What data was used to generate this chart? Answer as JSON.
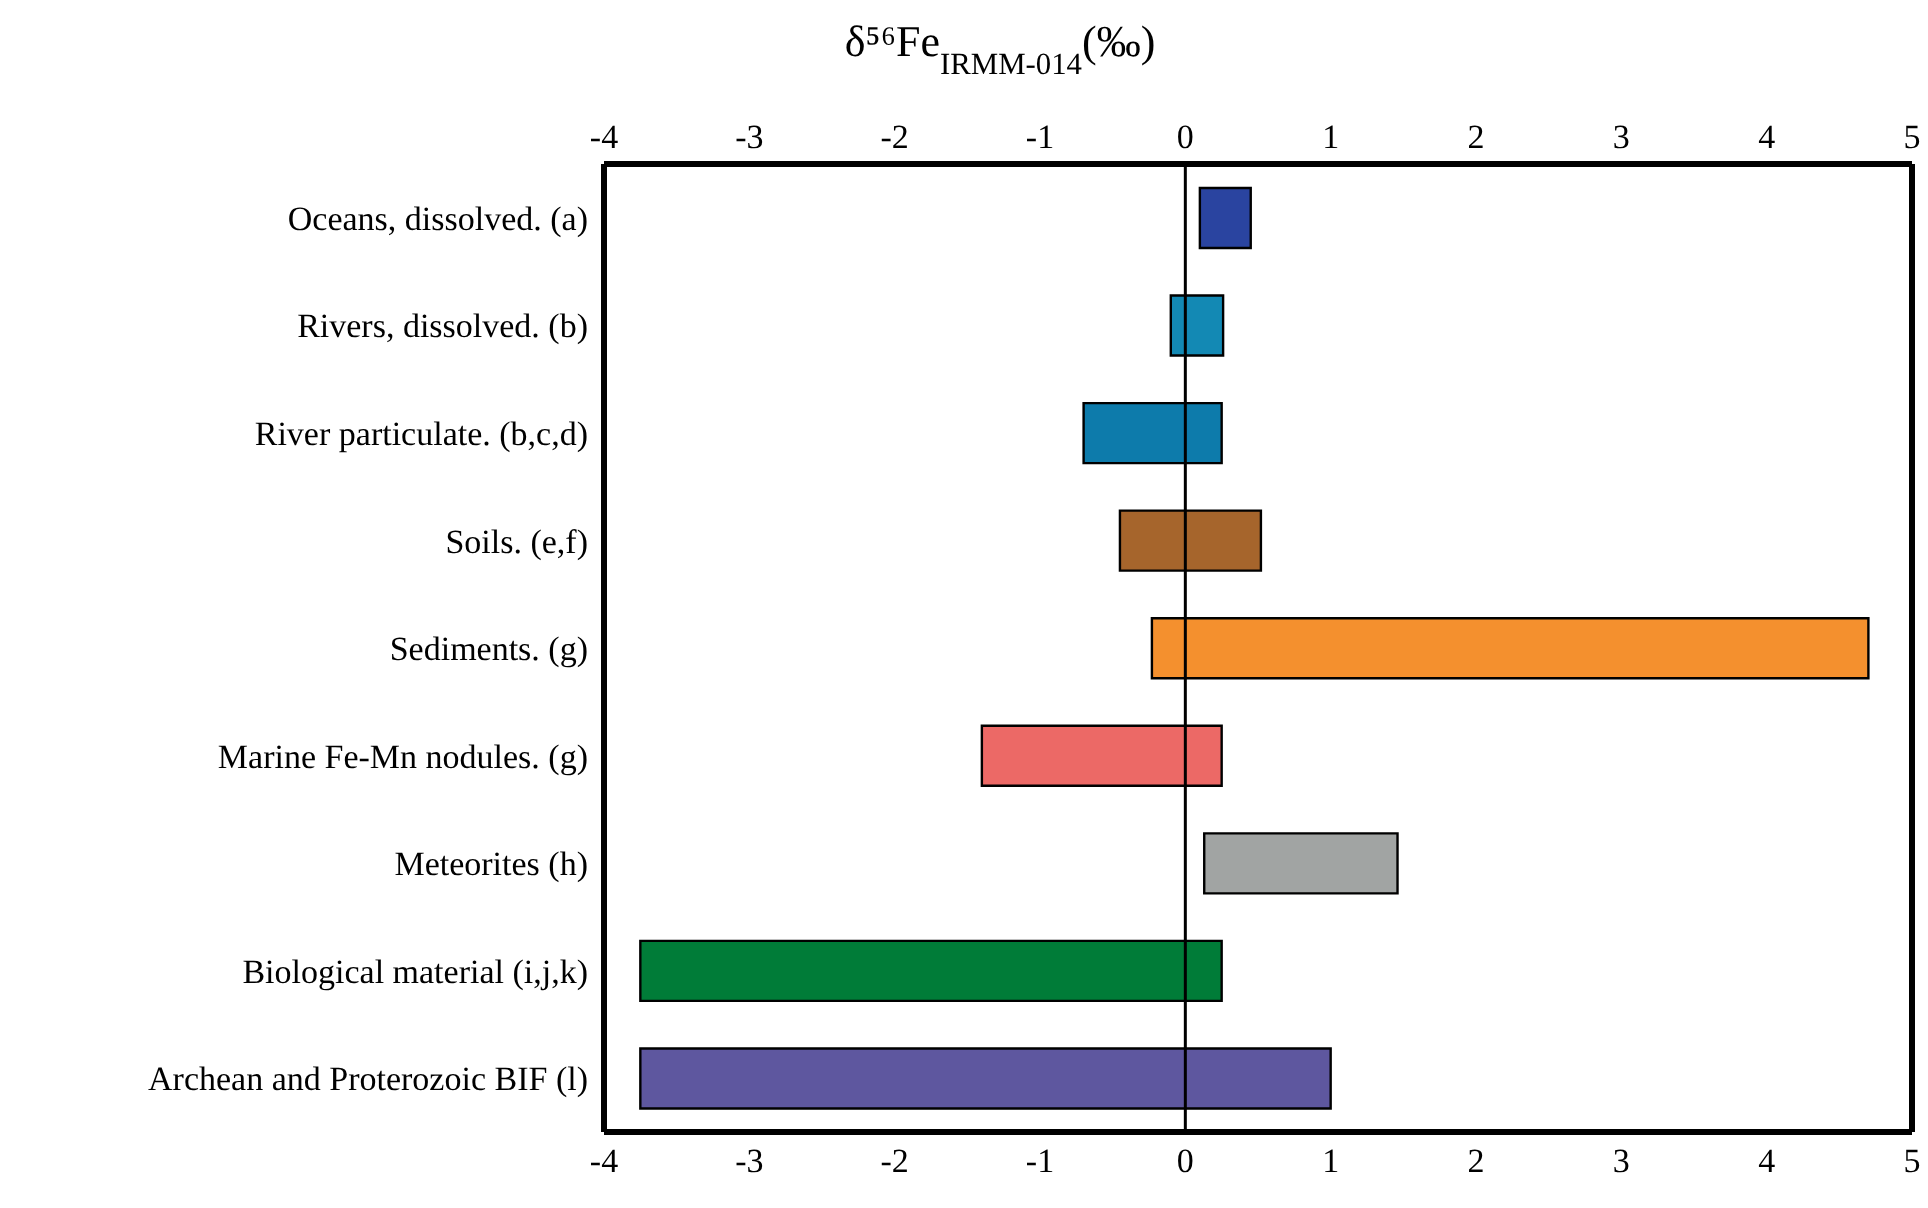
{
  "chart_data": {
    "type": "bar",
    "orientation": "horizontal",
    "title": "δ⁵⁶Fe$_{IRMM-014}$(‰)",
    "categories": [
      "Oceans, dissolved. (a)",
      "Rivers, dissolved. (b)",
      "River particulate. (b,c,d)",
      "Soils. (e,f)",
      "Sediments. (g)",
      "Marine Fe-Mn nodules. (g)",
      "Meteorites (h)",
      "Biological material (i,j,k)",
      "Archean and Proterozoic BIF (l)"
    ],
    "base": [
      0.1,
      -0.1,
      -0.7,
      -0.45,
      -0.23,
      -1.4,
      0.13,
      -3.75,
      -3.75
    ],
    "values": [
      0.35,
      0.36,
      0.95,
      0.97,
      4.93,
      1.65,
      1.33,
      4.0,
      4.75
    ],
    "colors": [
      "#2a44a0",
      "#1389b4",
      "#0d7bab",
      "#a6652c",
      "#f4902e",
      "#ec6966",
      "#a1a4a3",
      "#007c38",
      "#5e579f"
    ],
    "xlim": [
      -4,
      5
    ],
    "xticks": [
      -4,
      -3,
      -2,
      -1,
      0,
      1,
      2,
      3,
      4,
      5
    ],
    "x2lim": [
      -4,
      5
    ],
    "x2ticks": [
      -4,
      -3,
      -2,
      -1,
      0,
      1,
      2,
      3,
      4,
      5
    ],
    "ref_lines": [
      {
        "axis": "x",
        "value": 0,
        "color": "#000000"
      }
    ]
  }
}
